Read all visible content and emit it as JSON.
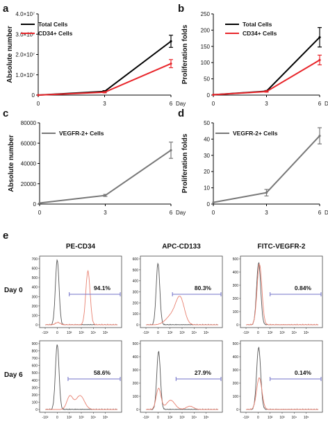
{
  "figure": {
    "panels": {
      "a": "a",
      "b": "b",
      "c": "c",
      "d": "d",
      "e": "e"
    },
    "x_axis_suffix": "Day"
  },
  "chart_data": [
    {
      "id": "a",
      "type": "line",
      "ylabel": "Absolute number",
      "x": [
        0,
        3,
        6
      ],
      "xticks": [
        "0",
        "3",
        "6"
      ],
      "ylim": [
        0,
        40000000
      ],
      "yticks": [
        0,
        10000000,
        20000000,
        30000000,
        40000000
      ],
      "ytick_labels": [
        "0",
        "1.0×10⁷",
        "2.0×10⁷",
        "3.0×10⁷",
        "4.0×10⁷"
      ],
      "legend_position": "top-left",
      "series": [
        {
          "name": "Total Cells",
          "color": "#000000",
          "values": [
            0,
            1800000,
            26500000
          ],
          "errors": [
            0,
            400000,
            3000000
          ]
        },
        {
          "name": "CD34+ Cells",
          "color": "#e8252a",
          "values": [
            0,
            1400000,
            15500000
          ],
          "errors": [
            0,
            300000,
            2000000
          ]
        }
      ]
    },
    {
      "id": "b",
      "type": "line",
      "ylabel": "Proliferation folds",
      "x": [
        0,
        3,
        6
      ],
      "xticks": [
        "0",
        "3",
        "6"
      ],
      "ylim": [
        0,
        250
      ],
      "yticks": [
        0,
        50,
        100,
        150,
        200,
        250
      ],
      "ytick_labels": [
        "0",
        "50",
        "100",
        "150",
        "200",
        "250"
      ],
      "legend_position": "top-left",
      "series": [
        {
          "name": "Total Cells",
          "color": "#000000",
          "values": [
            1,
            12,
            178
          ],
          "errors": [
            0,
            2,
            30
          ]
        },
        {
          "name": "CD34+ Cells",
          "color": "#e8252a",
          "values": [
            1,
            11,
            108
          ],
          "errors": [
            0,
            2,
            15
          ]
        }
      ]
    },
    {
      "id": "c",
      "type": "line",
      "ylabel": "Absolute number",
      "x": [
        0,
        3,
        6
      ],
      "xticks": [
        "0",
        "3",
        "6"
      ],
      "ylim": [
        0,
        80000
      ],
      "yticks": [
        0,
        20000,
        40000,
        60000,
        80000
      ],
      "ytick_labels": [
        "0",
        "20000",
        "40000",
        "60000",
        "80000"
      ],
      "legend_position": "top-left",
      "series": [
        {
          "name": "VEGFR-2+ Cells",
          "color": "#777777",
          "values": [
            1000,
            8500,
            53000
          ],
          "errors": [
            0,
            1000,
            8000
          ]
        }
      ]
    },
    {
      "id": "d",
      "type": "line",
      "ylabel": "Proliferation folds",
      "x": [
        0,
        3,
        6
      ],
      "xticks": [
        "0",
        "3",
        "6"
      ],
      "ylim": [
        0,
        50
      ],
      "yticks": [
        0,
        10,
        20,
        30,
        40,
        50
      ],
      "ytick_labels": [
        "0",
        "10",
        "20",
        "30",
        "40",
        "50"
      ],
      "legend_position": "top-left",
      "series": [
        {
          "name": "VEGFR-2+ Cells",
          "color": "#777777",
          "values": [
            1,
            7,
            42
          ],
          "errors": [
            0,
            2,
            5
          ]
        }
      ]
    },
    {
      "id": "e",
      "type": "histogram-grid",
      "columns": [
        "PE-CD34",
        "APC-CD133",
        "FITC-VEGFR-2"
      ],
      "rows": [
        "Day 0",
        "Day 6"
      ],
      "xtick_labels": [
        "-10²",
        "0",
        "10²",
        "10³",
        "10⁴",
        "10⁵"
      ],
      "colors": {
        "control": "#555555",
        "sample": "#e88070",
        "gate": "#7070c8"
      },
      "cells": [
        {
          "row": 0,
          "col": 0,
          "ymax": 700,
          "yticks": [
            0,
            100,
            200,
            300,
            400,
            500,
            600,
            700
          ],
          "gate": "94.1%",
          "gate_from_decade": 1.0,
          "control": {
            "center": 0.0,
            "width": 0.15,
            "height": 690
          },
          "sample": [
            {
              "center": 2.55,
              "width": 0.18,
              "height": 570
            },
            {
              "center": 0.05,
              "width": 0.2,
              "height": 25
            }
          ]
        },
        {
          "row": 0,
          "col": 1,
          "ymax": 600,
          "yticks": [
            0,
            100,
            200,
            300,
            400,
            500,
            600
          ],
          "gate": "80.3%",
          "gate_from_decade": 1.2,
          "control": {
            "center": 0.0,
            "width": 0.15,
            "height": 560
          },
          "sample": [
            {
              "center": 1.85,
              "width": 0.35,
              "height": 220
            },
            {
              "center": 1.2,
              "width": 0.5,
              "height": 90
            }
          ]
        },
        {
          "row": 0,
          "col": 2,
          "ymax": 500,
          "yticks": [
            0,
            100,
            200,
            300,
            400,
            500
          ],
          "gate": "0.84%",
          "gate_from_decade": 1.0,
          "control": {
            "center": 0.05,
            "width": 0.17,
            "height": 470
          },
          "sample": [
            {
              "center": 0.12,
              "width": 0.2,
              "height": 460
            }
          ]
        },
        {
          "row": 1,
          "col": 0,
          "ymax": 900,
          "yticks": [
            0,
            100,
            200,
            300,
            400,
            500,
            600,
            700,
            800,
            900
          ],
          "gate": "58.6%",
          "gate_from_decade": 0.9,
          "control": {
            "center": 0.0,
            "width": 0.15,
            "height": 890
          },
          "sample": [
            {
              "center": 1.05,
              "width": 0.25,
              "height": 180
            },
            {
              "center": 1.9,
              "width": 0.35,
              "height": 190
            }
          ]
        },
        {
          "row": 1,
          "col": 1,
          "ymax": 500,
          "yticks": [
            0,
            100,
            200,
            300,
            400,
            500
          ],
          "gate": "27.9%",
          "gate_from_decade": 1.5,
          "control": {
            "center": 0.05,
            "width": 0.15,
            "height": 440
          },
          "sample": [
            {
              "center": 0.05,
              "width": 0.2,
              "height": 160
            },
            {
              "center": 1.05,
              "width": 0.35,
              "height": 70
            },
            {
              "center": 2.65,
              "width": 0.3,
              "height": 25
            }
          ]
        },
        {
          "row": 1,
          "col": 2,
          "ymax": 500,
          "yticks": [
            0,
            100,
            200,
            300,
            400,
            500
          ],
          "gate": "0.14%",
          "gate_from_decade": 1.0,
          "control": {
            "center": 0.05,
            "width": 0.17,
            "height": 470
          },
          "sample": [
            {
              "center": 0.1,
              "width": 0.22,
              "height": 240
            }
          ]
        }
      ]
    }
  ]
}
